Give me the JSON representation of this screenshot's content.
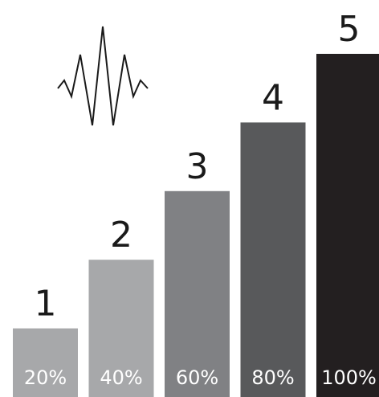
{
  "chart_data": {
    "type": "bar",
    "categories": [
      "1",
      "2",
      "3",
      "4",
      "5"
    ],
    "values": [
      20,
      40,
      60,
      80,
      100
    ],
    "value_labels": [
      "20%",
      "40%",
      "60%",
      "80%",
      "100%"
    ],
    "ylim": [
      0,
      100
    ],
    "colors": [
      "#a7a8aa",
      "#a7a8aa",
      "#808184",
      "#58595b",
      "#231f20"
    ],
    "grid": false,
    "title": "",
    "xlabel": "",
    "ylabel": ""
  },
  "icon": {
    "name": "sound-wave-icon",
    "color": "#1a1a1a"
  }
}
